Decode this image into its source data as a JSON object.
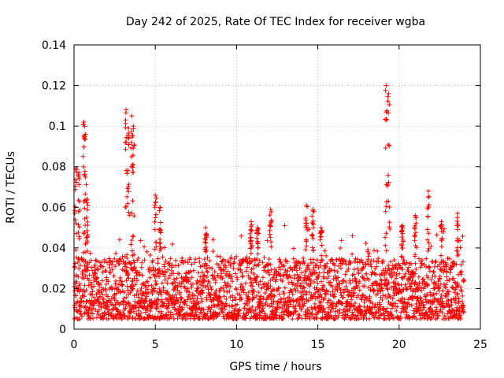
{
  "chart_data": {
    "type": "scatter",
    "title": "Day 242 of 2025, Rate Of TEC Index for receiver wgba",
    "xlabel": "GPS time / hours",
    "ylabel": "ROTI / TECUs",
    "xlim": [
      0,
      25
    ],
    "ylim": [
      0,
      0.14
    ],
    "xticks": [
      0,
      5,
      10,
      15,
      20,
      25
    ],
    "xtick_labels": [
      "0",
      "5",
      "10",
      "15",
      "20",
      "25"
    ],
    "yticks": [
      0,
      0.02,
      0.04,
      0.06,
      0.08,
      0.1,
      0.12,
      0.14
    ],
    "ytick_labels": [
      "0",
      "0.02",
      "0.04",
      "0.06",
      "0.08",
      "0.1",
      "0.12",
      "0.14"
    ],
    "grid": true,
    "marker": "+",
    "series": [
      {
        "name": "ROTI",
        "color": "#ff0000",
        "x_range": [
          0,
          24
        ],
        "baseline_band": [
          0.005,
          0.035
        ],
        "spikes": [
          {
            "x": 0.1,
            "peak": 0.079
          },
          {
            "x": 0.3,
            "peak": 0.077
          },
          {
            "x": 0.6,
            "peak": 0.102
          },
          {
            "x": 0.7,
            "peak": 0.096
          },
          {
            "x": 0.8,
            "peak": 0.064
          },
          {
            "x": 3.2,
            "peak": 0.108
          },
          {
            "x": 3.35,
            "peak": 0.099
          },
          {
            "x": 3.55,
            "peak": 0.105
          },
          {
            "x": 3.65,
            "peak": 0.1
          },
          {
            "x": 5.0,
            "peak": 0.066
          },
          {
            "x": 5.3,
            "peak": 0.06
          },
          {
            "x": 8.1,
            "peak": 0.05
          },
          {
            "x": 10.9,
            "peak": 0.053
          },
          {
            "x": 11.3,
            "peak": 0.05
          },
          {
            "x": 12.1,
            "peak": 0.059
          },
          {
            "x": 14.3,
            "peak": 0.061
          },
          {
            "x": 14.7,
            "peak": 0.059
          },
          {
            "x": 15.2,
            "peak": 0.05
          },
          {
            "x": 19.2,
            "peak": 0.12
          },
          {
            "x": 19.35,
            "peak": 0.116
          },
          {
            "x": 20.2,
            "peak": 0.051
          },
          {
            "x": 21.0,
            "peak": 0.056
          },
          {
            "x": 21.8,
            "peak": 0.068
          },
          {
            "x": 22.6,
            "peak": 0.053
          },
          {
            "x": 23.6,
            "peak": 0.057
          }
        ]
      }
    ]
  }
}
